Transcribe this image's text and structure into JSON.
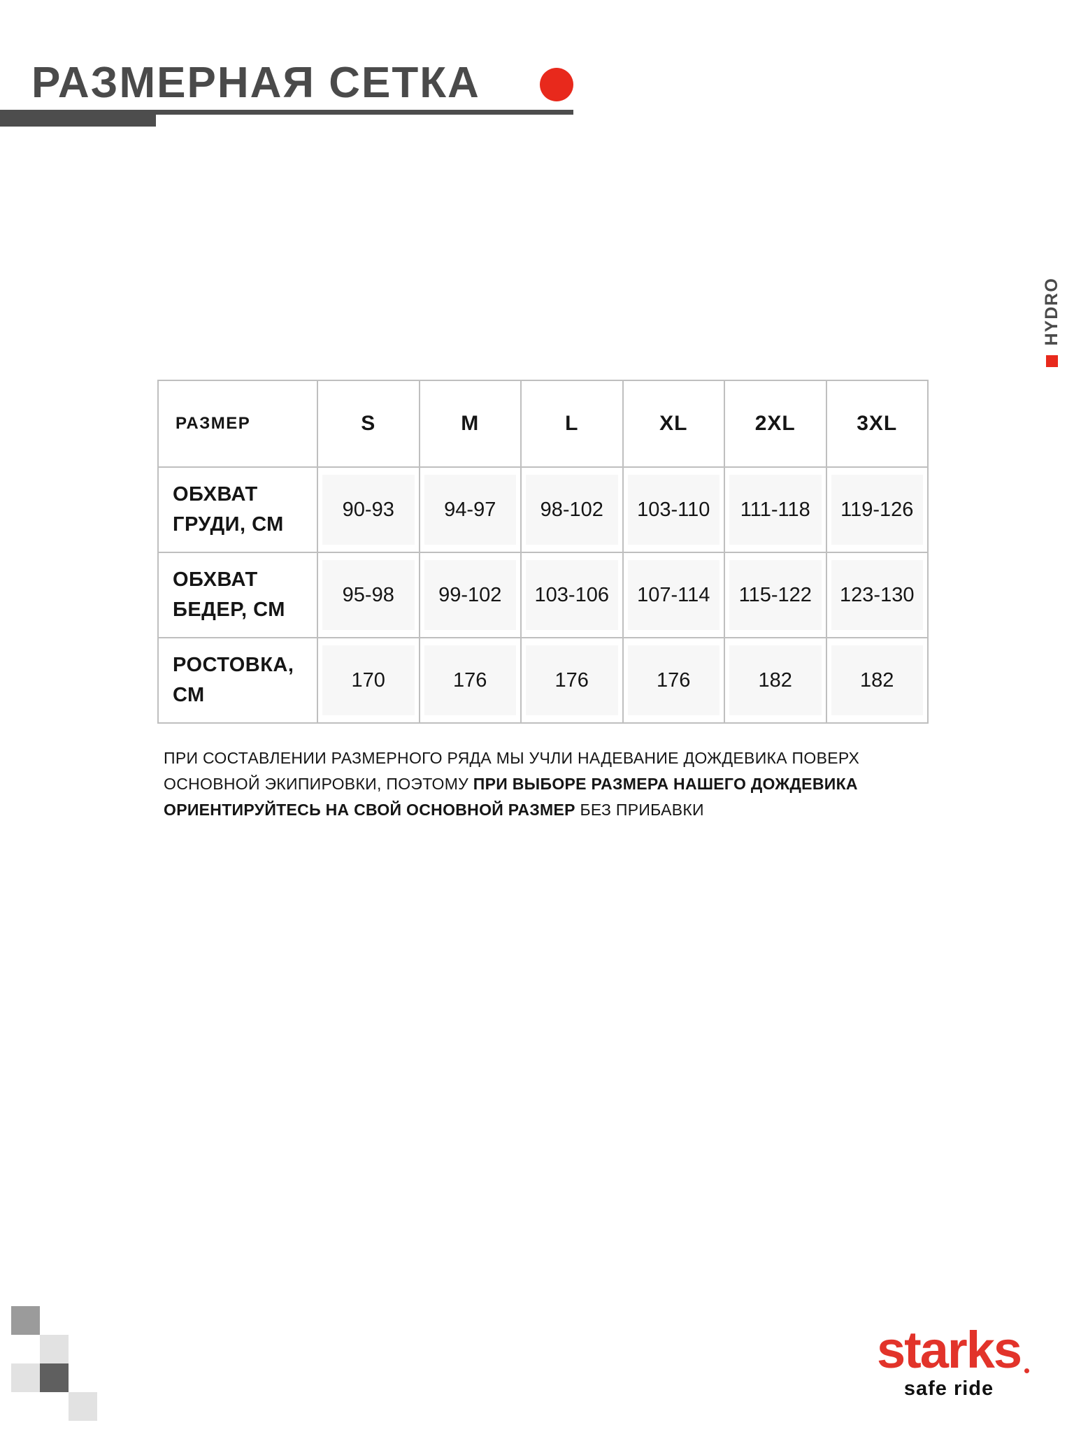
{
  "header": {
    "title": "РАЗМЕРНАЯ СЕТКА"
  },
  "side_label": {
    "text": "HYDRO"
  },
  "size_table": {
    "columns": [
      "РАЗМЕР",
      "S",
      "M",
      "L",
      "XL",
      "2XL",
      "3XL"
    ],
    "rows": [
      {
        "label": "ОБХВАТ ГРУДИ, СМ",
        "values": [
          "90-93",
          "94-97",
          "98-102",
          "103-110",
          "111-118",
          "119-126"
        ]
      },
      {
        "label": "ОБХВАТ БЕДЕР, СМ",
        "values": [
          "95-98",
          "99-102",
          "103-106",
          "107-114",
          "115-122",
          "123-130"
        ]
      },
      {
        "label": "РОСТОВКА, СМ",
        "values": [
          "170",
          "176",
          "176",
          "176",
          "182",
          "182"
        ]
      }
    ]
  },
  "note": {
    "regular_1": "ПРИ СОСТАВЛЕНИИ РАЗМЕРНОГО РЯДА МЫ УЧЛИ НАДЕВАНИЕ ДОЖДЕВИКА ПОВЕРХ ОСНОВНОЙ ЭКИПИРОВКИ, ПОЭТОМУ ",
    "bold": "ПРИ ВЫБОРЕ РАЗМЕРА НАШЕГО ДОЖДЕВИКА ОРИЕНТИРУЙТЕСЬ НА СВОЙ ОСНОВНОЙ РАЗМЕР",
    "regular_2": " БЕЗ ПРИБАВКИ"
  },
  "logo": {
    "brand": "starks",
    "tagline": "safe ride"
  },
  "colors": {
    "accent_red": "#e8291c",
    "logo_red": "#e2332a",
    "heading_gray": "#4a4a4a",
    "bar_gray": "#4d4d4d",
    "table_border": "#bfbfbf",
    "text_black": "#151515",
    "square_medium": "#9b9b9b",
    "square_light": "#e2e2e2",
    "square_dark": "#5f5f5f"
  }
}
